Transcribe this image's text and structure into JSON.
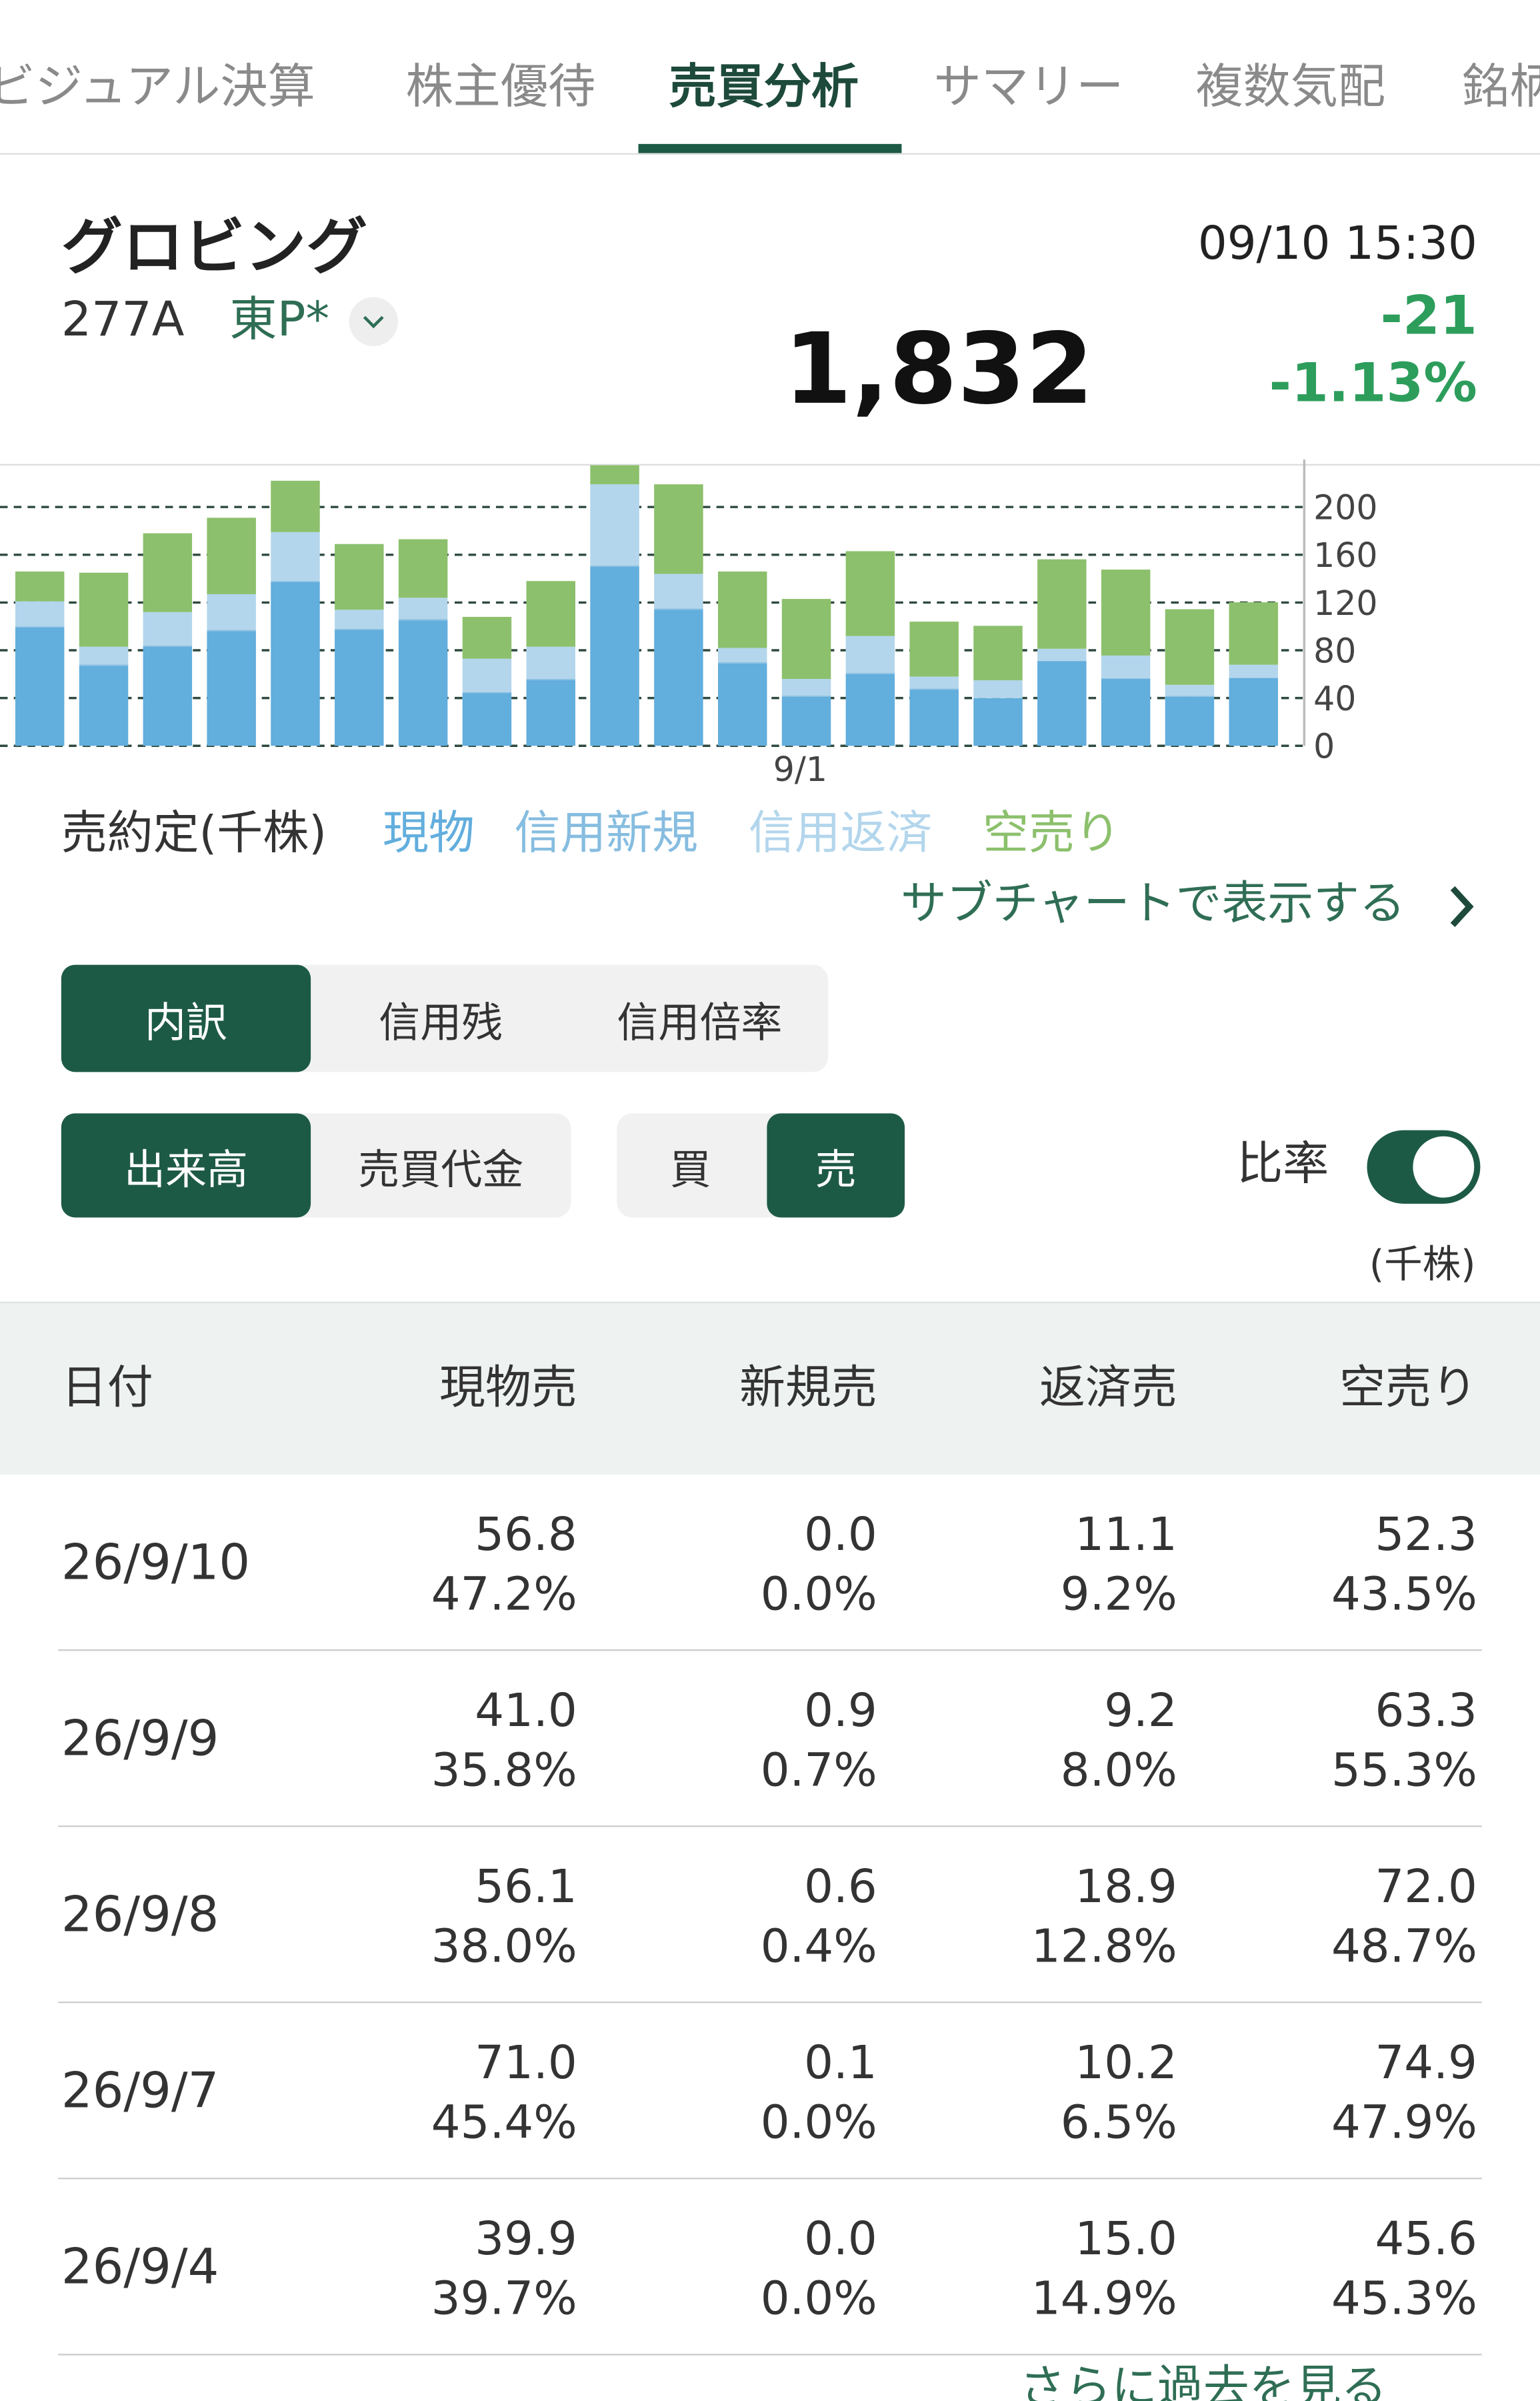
{
  "tabs": [
    "ビジュアル決算",
    "株主優待",
    "売買分析",
    "サマリー",
    "複数気配",
    "銘柄"
  ],
  "header": {
    "name": "グロビング",
    "code": "277A",
    "market": "東P*",
    "time": "09/10 15:30",
    "price": "1,832",
    "change": "-21",
    "change_pct": "-1.13%"
  },
  "chart_data": {
    "type": "bar",
    "stacked": true,
    "legend_title": "売約定(千株)",
    "categories": [
      null,
      null,
      null,
      null,
      null,
      null,
      null,
      null,
      null,
      null,
      null,
      null,
      "9/1",
      null,
      null,
      null,
      null,
      null,
      null,
      null
    ],
    "series": [
      {
        "name": "現物",
        "color": "#62aedd",
        "values": [
          99,
          67,
          83,
          96,
          137,
          97,
          105,
          44,
          55,
          150,
          114,
          69,
          41,
          60,
          47,
          39.9,
          71.0,
          56.1,
          41.0,
          56.8
        ]
      },
      {
        "name": "信用新規",
        "color": "#86bde0",
        "values": [
          1,
          1,
          1,
          1,
          1,
          1,
          1,
          1,
          1,
          1,
          1,
          1,
          1,
          1,
          1,
          0.0,
          0.1,
          0.6,
          0.9,
          0.0
        ]
      },
      {
        "name": "信用返済",
        "color": "#b3d6ec",
        "values": [
          21,
          15,
          28,
          30,
          41,
          16,
          18,
          28,
          27,
          68,
          29,
          12,
          14,
          31,
          10,
          15.0,
          10.2,
          18.9,
          9.2,
          11.1
        ]
      },
      {
        "name": "空売り",
        "color": "#8cc06c",
        "values": [
          25,
          62,
          66,
          64,
          43,
          55,
          49,
          35,
          55,
          16,
          75,
          64,
          67,
          71,
          46,
          45.6,
          74.9,
          72.0,
          63.3,
          52.3
        ]
      }
    ],
    "ylim": [
      0,
      236
    ],
    "yticks": [
      0,
      40,
      80,
      120,
      160,
      200
    ],
    "grid": true,
    "y_axis_side": "right"
  },
  "sub_chart_link": "サブチャートで表示する",
  "view_buttons": [
    "内訳",
    "信用残",
    "信用倍率"
  ],
  "measure_buttons": [
    "出来高",
    "売買代金"
  ],
  "side_buttons": [
    "買",
    "売"
  ],
  "ratio_label": "比率",
  "unit": "(千株)",
  "table": {
    "header": [
      "日付",
      "現物売",
      "新規売",
      "返済売",
      "空売り"
    ],
    "rows": [
      {
        "date": "26/9/10",
        "cells": [
          [
            "56.8",
            "47.2%"
          ],
          [
            "0.0",
            "0.0%"
          ],
          [
            "11.1",
            "9.2%"
          ],
          [
            "52.3",
            "43.5%"
          ]
        ]
      },
      {
        "date": "26/9/9",
        "cells": [
          [
            "41.0",
            "35.8%"
          ],
          [
            "0.9",
            "0.7%"
          ],
          [
            "9.2",
            "8.0%"
          ],
          [
            "63.3",
            "55.3%"
          ]
        ]
      },
      {
        "date": "26/9/8",
        "cells": [
          [
            "56.1",
            "38.0%"
          ],
          [
            "0.6",
            "0.4%"
          ],
          [
            "18.9",
            "12.8%"
          ],
          [
            "72.0",
            "48.7%"
          ]
        ]
      },
      {
        "date": "26/9/7",
        "cells": [
          [
            "71.0",
            "45.4%"
          ],
          [
            "0.1",
            "0.0%"
          ],
          [
            "10.2",
            "6.5%"
          ],
          [
            "74.9",
            "47.9%"
          ]
        ]
      },
      {
        "date": "26/9/4",
        "cells": [
          [
            "39.9",
            "39.7%"
          ],
          [
            "0.0",
            "0.0%"
          ],
          [
            "15.0",
            "14.9%"
          ],
          [
            "45.6",
            "45.3%"
          ]
        ]
      }
    ]
  },
  "more_link": "さらに過去を見る"
}
